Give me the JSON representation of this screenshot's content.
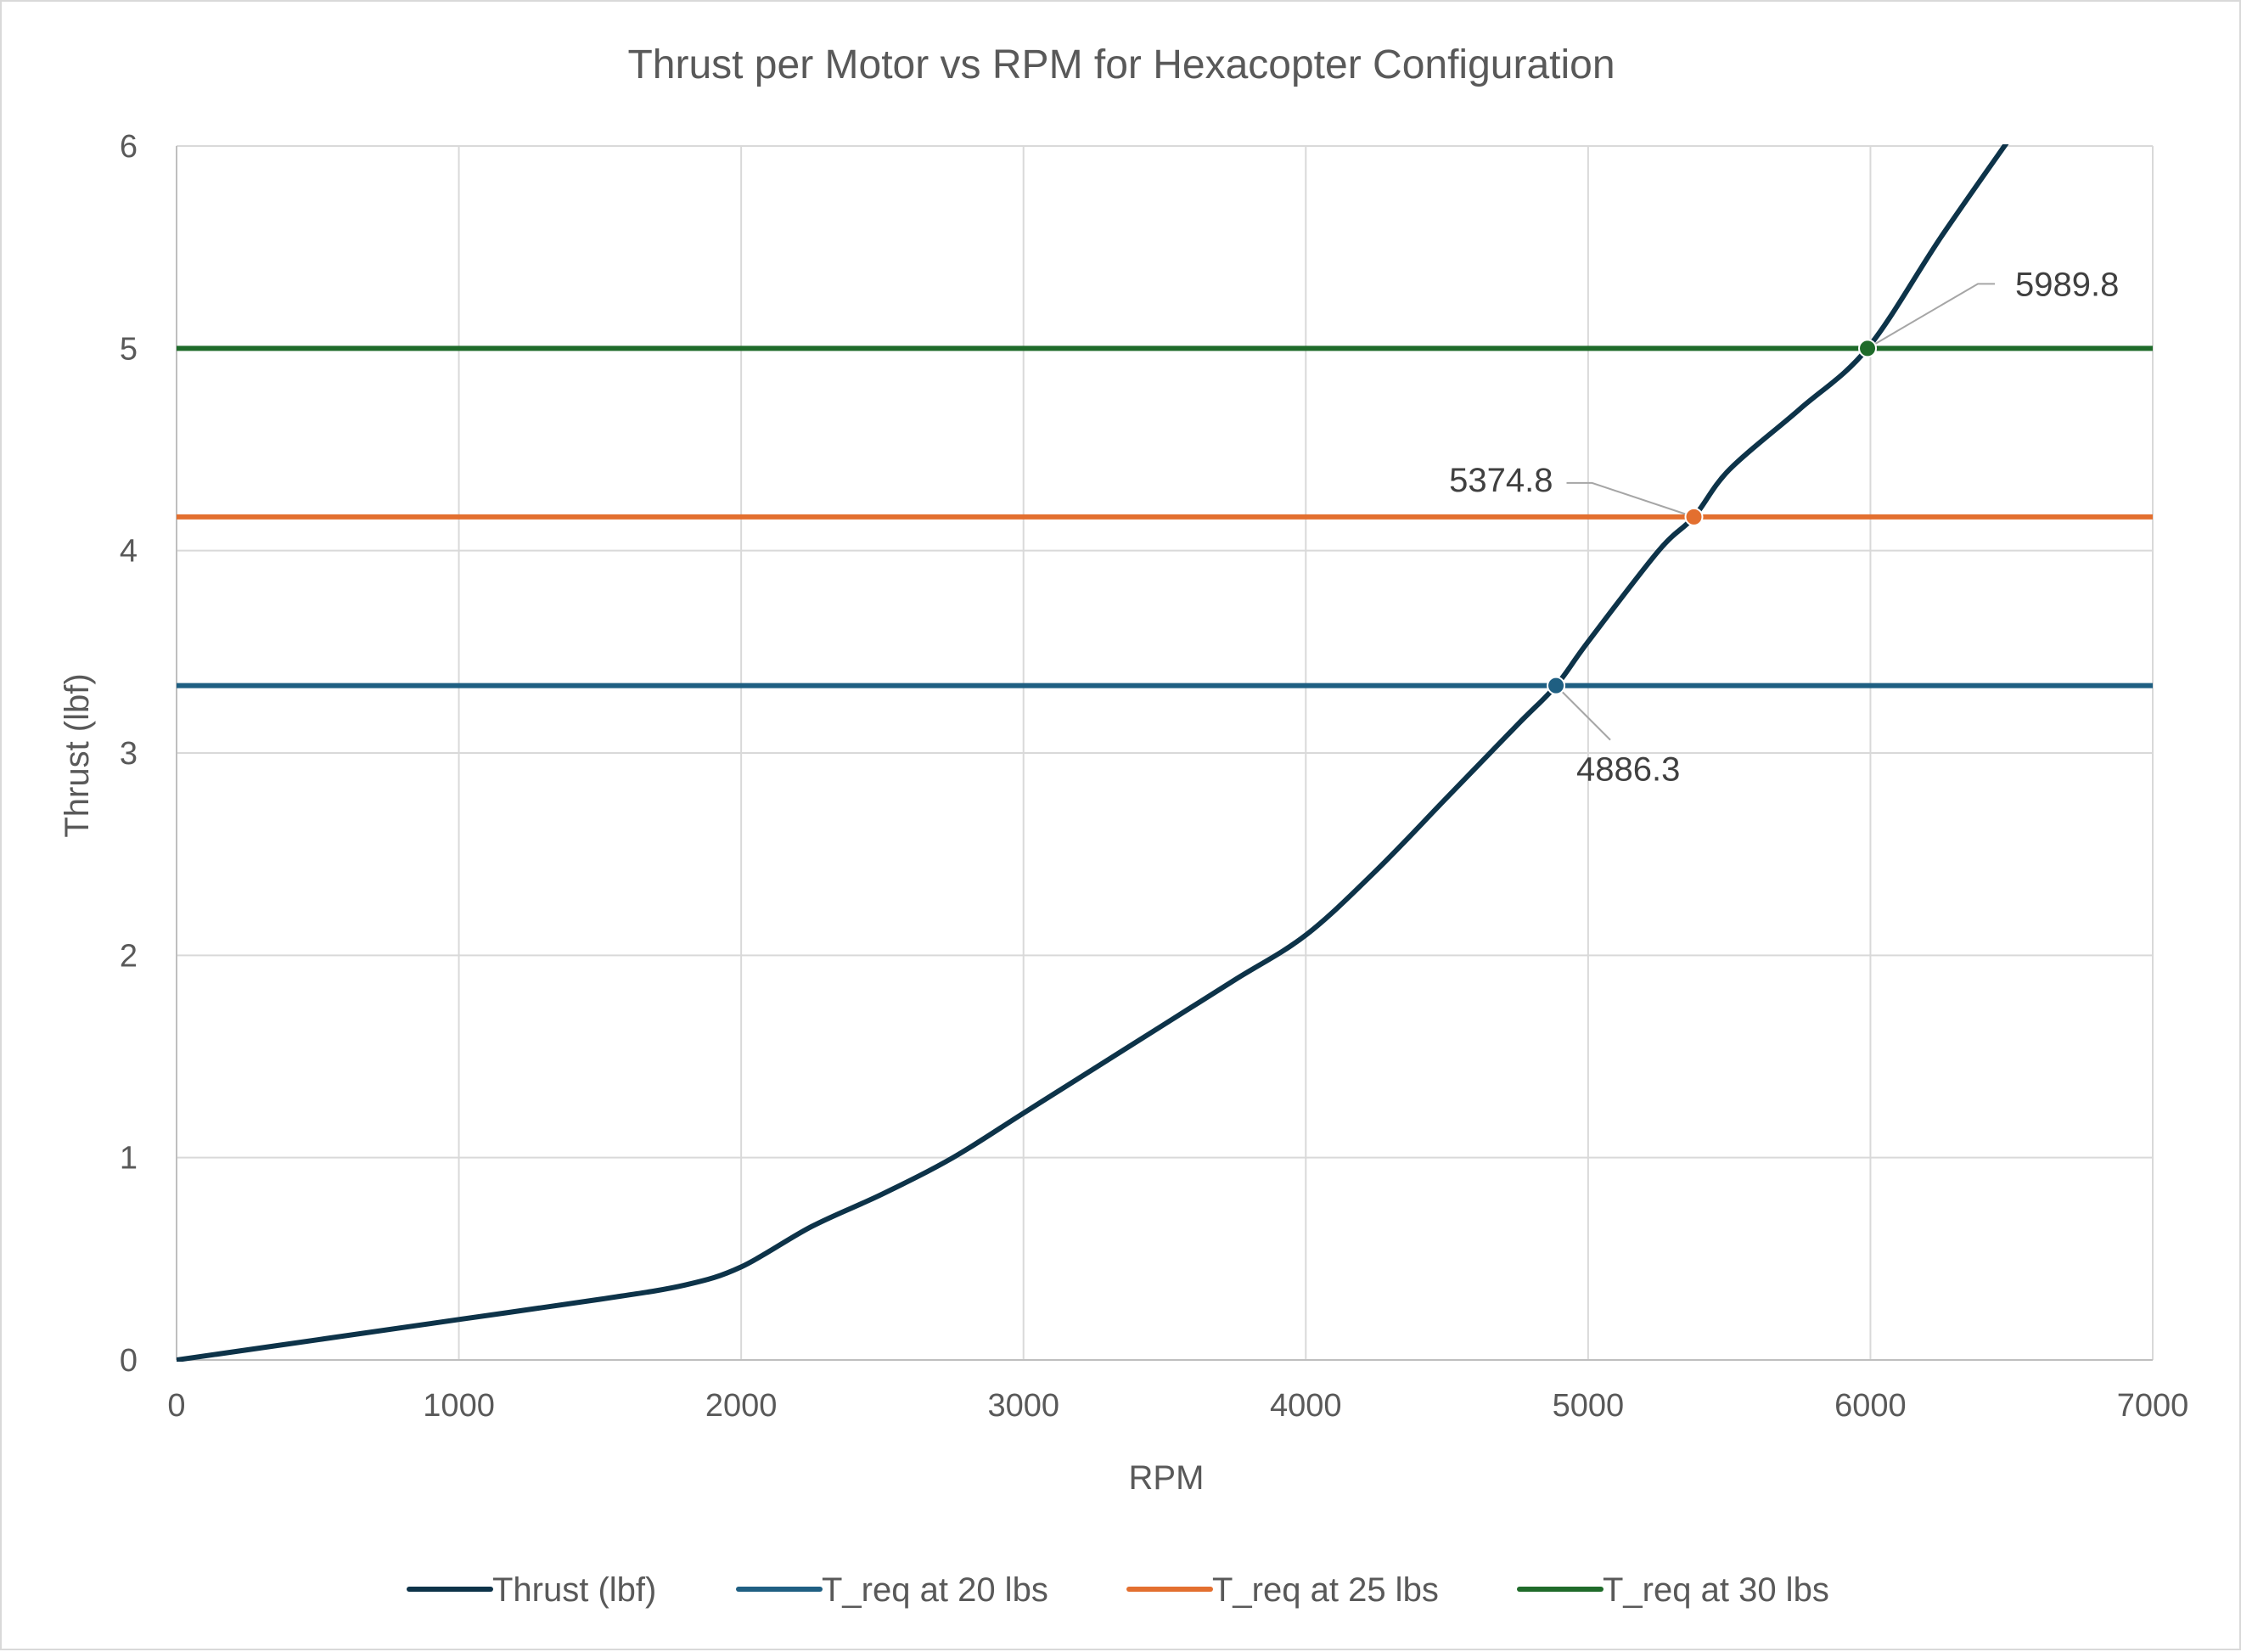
{
  "chart_data": {
    "type": "line",
    "title": "Thrust per Motor vs RPM for Hexacopter Configuration",
    "xlabel": "RPM",
    "ylabel": "Thrust (lbf)",
    "xlim": [
      0,
      7000
    ],
    "ylim": [
      0,
      6
    ],
    "xticks": [
      0,
      1000,
      2000,
      3000,
      4000,
      5000,
      6000,
      7000
    ],
    "yticks": [
      0,
      1,
      2,
      3,
      4,
      5,
      6
    ],
    "grid": true,
    "legend_position": "bottom",
    "series": [
      {
        "name": "Thrust (lbf)",
        "color": "#0d3349",
        "x": [
          0,
          500,
          1000,
          1500,
          1800,
          2000,
          2250,
          2500,
          2750,
          3000,
          3250,
          3500,
          3750,
          4000,
          4250,
          4500,
          4750,
          4886.3,
          5000,
          5250,
          5374.8,
          5500,
          5750,
          5989.8,
          6250,
          6500
        ],
        "y": [
          0,
          0.1,
          0.2,
          0.3,
          0.37,
          0.46,
          0.66,
          0.82,
          1.0,
          1.22,
          1.44,
          1.66,
          1.88,
          2.1,
          2.42,
          2.78,
          3.14,
          3.333,
          3.55,
          4.0,
          4.167,
          4.4,
          4.7,
          5.0,
          5.55,
          6.05
        ]
      },
      {
        "name": "T_req at 20 lbs",
        "color": "#1f5f82",
        "x": [
          0,
          7000
        ],
        "y": [
          3.333,
          3.333
        ]
      },
      {
        "name": "T_req at 25 lbs",
        "color": "#e36f2f",
        "x": [
          0,
          7000
        ],
        "y": [
          4.167,
          4.167
        ]
      },
      {
        "name": "T_req at 30 lbs",
        "color": "#1f6b2a",
        "x": [
          0,
          7000
        ],
        "y": [
          5.0,
          5.0
        ]
      }
    ],
    "intersections": [
      {
        "x": 4886.3,
        "y": 3.333,
        "label": "4886.3",
        "color": "#1f5f82"
      },
      {
        "x": 5374.8,
        "y": 4.167,
        "label": "5374.8",
        "color": "#e36f2f"
      },
      {
        "x": 5989.8,
        "y": 5.0,
        "label": "5989.8",
        "color": "#1f6b2a"
      }
    ],
    "grid_color": "#d9d9d9",
    "axis_color": "#bfbfbf"
  }
}
